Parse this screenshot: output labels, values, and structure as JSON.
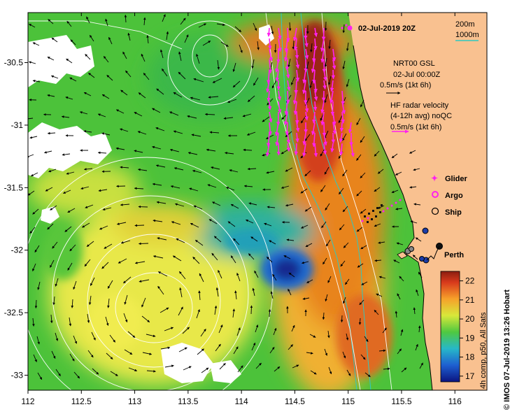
{
  "title": "02-Jul-2019 20Z",
  "credit": "© IMOS 07-Jul-2019 13:26 Hobart",
  "x_ticks": [
    "112",
    "112.5",
    "113",
    "113.5",
    "114",
    "114.5",
    "115",
    "115.5",
    "116"
  ],
  "y_ticks": [
    "-30.5",
    "-31",
    "-31.5",
    "-32",
    "-32.5",
    "-33"
  ],
  "x_tick_values": [
    112,
    112.5,
    113,
    113.5,
    114,
    114.5,
    115,
    115.5,
    116
  ],
  "y_tick_values": [
    -30.5,
    -31,
    -31.5,
    -32,
    -32.5,
    -33
  ],
  "lon_range": [
    112,
    116.3
  ],
  "lat_range": [
    -33.12,
    -30.1
  ],
  "depth_legend": {
    "line1": "200m",
    "line2": "1000m",
    "color": "#2fc9c0"
  },
  "ncep_legend": {
    "line1": "NRT00 GSL",
    "line2": "02-Jul 00:00Z",
    "line3": "0.5m/s (1kt 6h)"
  },
  "hf_legend": {
    "line1": "HF radar velocity",
    "line2": "(4-12h avg) noQC",
    "line3": "0.5m/s (1kt 6h)",
    "color": "#ff22ee"
  },
  "markers": {
    "glider": "Glider",
    "argo": "Argo",
    "ship": "Ship"
  },
  "city": {
    "name": "Perth",
    "lon": 115.86,
    "lat": -31.95
  },
  "colorbar": {
    "ticks": [
      "22",
      "21",
      "20",
      "19",
      "18",
      "17"
    ],
    "tick_values": [
      22,
      21,
      20,
      19,
      18,
      17
    ],
    "range": [
      16.7,
      22.5
    ],
    "label": "4h comp, p50, All Sats"
  },
  "colors": {
    "land": "#f9c190",
    "ocean_warm": "#d4441e",
    "ocean_cold": "#1c3ca8",
    "hf_arrow": "#ff22ee"
  }
}
